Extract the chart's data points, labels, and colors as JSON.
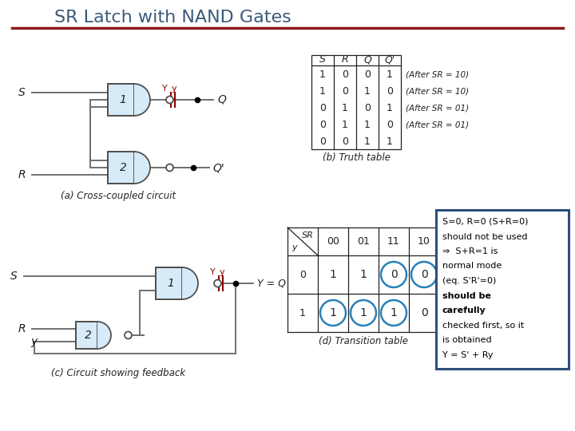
{
  "title": "SR Latch with NAND Gates",
  "title_color": "#3d5a7a",
  "title_fontsize": 16,
  "separator_color": "#8b1a1a",
  "bg_color": "#ffffff",
  "annotation_text": "S=0, R=0 (S+R=0)\nshould not be used\n⇒  S+R=1 is\nnormal mode\n(eq. S'R'=0)\nshould be\ncarefully\nchecked first, so it\nis obtained\nY = S' + Ry",
  "annotation_box_color": "#2c4f7c",
  "gate_fill": "#d6eaf8",
  "gate_edge": "#505050",
  "wire_color": "#707070",
  "label_color": "#222222",
  "highlight_color": "#8b0000",
  "truth_header": [
    "S",
    "R",
    "Q",
    "Q'"
  ],
  "truth_rows": [
    [
      1,
      0,
      0,
      1
    ],
    [
      1,
      0,
      1,
      0
    ],
    [
      0,
      1,
      0,
      1
    ],
    [
      0,
      1,
      1,
      0
    ],
    [
      0,
      0,
      1,
      1
    ]
  ],
  "truth_notes": [
    "(After SR = 10)",
    "(After SR = 10)",
    "(After SR = 01)",
    "(After SR = 01)",
    ""
  ],
  "circled_color": "#2980b9",
  "tr_data": [
    [
      "1",
      "1",
      "0",
      "0"
    ],
    [
      "1",
      "1",
      "1",
      "0"
    ]
  ],
  "tr_row_labels": [
    "0",
    "1"
  ],
  "tr_col_labels": [
    "00",
    "01",
    "11",
    "10"
  ],
  "tr_circled": [
    [
      0,
      2
    ],
    [
      0,
      3
    ],
    [
      1,
      0
    ],
    [
      1,
      1
    ],
    [
      1,
      2
    ]
  ]
}
